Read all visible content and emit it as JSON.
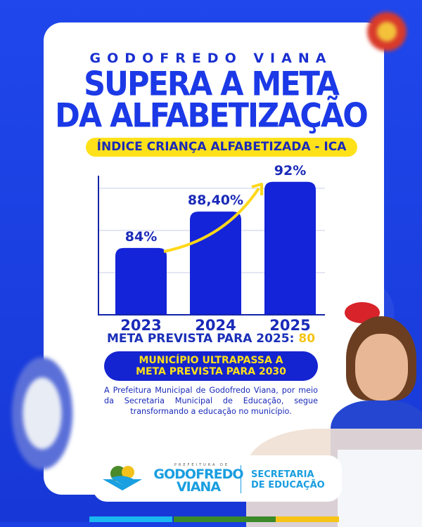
{
  "header": {
    "municipality": "GODOFREDO VIANA",
    "headline_line1": "SUPERA A META",
    "headline_line2": "DA ALFABETIZAÇÃO",
    "index_label": "ÍNDICE CRIANÇA ALFABETIZADA - ICA"
  },
  "chart_data": {
    "type": "bar",
    "categories": [
      "2023",
      "2024",
      "2025"
    ],
    "values": [
      84,
      88.4,
      92
    ],
    "data_labels": [
      "84%",
      "88,40%",
      "92%"
    ],
    "ylim": [
      76,
      93
    ],
    "grid": true,
    "bar_color": "#1424d8",
    "trend_arrow_color": "#ffd81a"
  },
  "goal": {
    "label": "META PREVISTA PARA 2025:",
    "value": "80"
  },
  "banner": {
    "line1": "MUNICÍPIO ULTRAPASSA A",
    "line2": "META PREVISTA PARA 2030"
  },
  "body_text": "A Prefeitura Municipal de Godofredo Viana, por meio da Secretaria Municipal de Educação, segue transformando a educação no município.",
  "footer": {
    "logo_small": "PREFEITURA DE",
    "logo_name1": "GODOFREDO",
    "logo_name2": "VIANA",
    "department_line1": "SECRETARIA",
    "department_line2": "DE EDUCAÇÃO"
  },
  "colors": {
    "background": "#1a3fe3",
    "accent_yellow": "#ffe11a",
    "primary_blue": "#1b39e6",
    "logo_blue": "#1aa0e0"
  }
}
